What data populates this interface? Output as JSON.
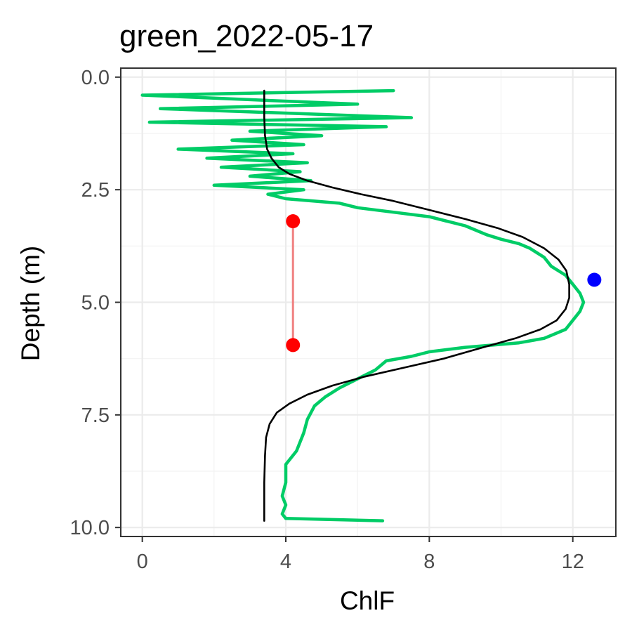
{
  "chart_data": {
    "type": "line",
    "title": "green_2022-05-17",
    "xlabel": "ChlF",
    "ylabel": "Depth (m)",
    "xlim": [
      -0.6,
      13.2
    ],
    "ylim": [
      10.2,
      -0.2
    ],
    "y_reversed": true,
    "x_ticks": [
      0,
      4,
      8,
      12
    ],
    "x_tick_labels": [
      "0",
      "4",
      "8",
      "12"
    ],
    "y_ticks": [
      0,
      2.5,
      5,
      7.5,
      10
    ],
    "y_tick_labels": [
      "0.0",
      "2.5",
      "5.0",
      "7.5",
      "10.0"
    ],
    "grid": true,
    "theme": "bw",
    "series": [
      {
        "kind": "observed",
        "color": "#00cc66",
        "x": [
          7.0,
          0.0,
          6.0,
          0.5,
          7.5,
          0.2,
          6.8,
          3.0,
          5.0,
          2.5,
          4.5,
          1.0,
          4.2,
          1.8,
          4.6,
          2.2,
          4.4,
          3.0,
          4.7,
          2.0,
          4.5,
          3.5,
          4.0,
          5.5,
          6.0,
          7.0,
          8.0,
          8.5,
          9.0,
          9.6,
          10.0,
          10.5,
          10.8,
          11.2,
          11.4,
          11.8,
          12.0,
          12.2,
          12.3,
          12.2,
          12.0,
          11.8,
          11.5,
          11.2,
          10.5,
          9.0,
          8.0,
          7.5,
          6.8,
          6.5,
          6.0,
          5.5,
          5.1,
          4.8,
          4.6,
          4.5,
          4.3,
          4.0,
          4.0,
          3.9,
          4.0,
          3.9,
          4.0,
          6.7
        ],
        "y": [
          0.3,
          0.4,
          0.6,
          0.7,
          0.9,
          1.0,
          1.1,
          1.2,
          1.3,
          1.4,
          1.5,
          1.6,
          1.7,
          1.8,
          1.9,
          2.0,
          2.1,
          2.2,
          2.3,
          2.4,
          2.5,
          2.6,
          2.7,
          2.8,
          2.9,
          3.0,
          3.1,
          3.2,
          3.3,
          3.5,
          3.6,
          3.7,
          3.8,
          4.0,
          4.2,
          4.4,
          4.6,
          4.8,
          5.0,
          5.2,
          5.4,
          5.6,
          5.7,
          5.8,
          5.9,
          6.0,
          6.1,
          6.2,
          6.3,
          6.5,
          6.7,
          6.9,
          7.1,
          7.3,
          7.6,
          7.9,
          8.3,
          8.6,
          9.0,
          9.3,
          9.5,
          9.7,
          9.8,
          9.85
        ]
      },
      {
        "kind": "fit",
        "color": "#000000",
        "x": [
          3.4,
          3.4,
          3.42,
          3.48,
          3.6,
          3.8,
          4.1,
          4.6,
          5.3,
          6.1,
          7.0,
          8.0,
          9.0,
          9.9,
          10.6,
          11.2,
          11.6,
          11.82,
          11.9,
          11.9,
          11.8,
          11.55,
          11.1,
          10.4,
          9.5,
          8.4,
          7.3,
          6.2,
          5.3,
          4.6,
          4.1,
          3.75,
          3.55,
          3.45,
          3.42,
          3.4,
          3.4
        ],
        "y": [
          0.3,
          0.9,
          1.3,
          1.6,
          1.8,
          2.0,
          2.15,
          2.3,
          2.45,
          2.6,
          2.75,
          2.95,
          3.15,
          3.35,
          3.55,
          3.8,
          4.05,
          4.3,
          4.6,
          4.9,
          5.15,
          5.4,
          5.6,
          5.8,
          6.0,
          6.25,
          6.45,
          6.65,
          6.85,
          7.05,
          7.25,
          7.45,
          7.7,
          8.0,
          8.4,
          9.0,
          9.85
        ]
      }
    ],
    "points": [
      {
        "x": 4.2,
        "y": 3.2,
        "color": "#ff0000"
      },
      {
        "x": 4.2,
        "y": 5.95,
        "color": "#ff0000"
      },
      {
        "x": 12.6,
        "y": 4.5,
        "color": "#0000ff"
      }
    ],
    "segments": [
      {
        "x1": 4.2,
        "y1": 3.2,
        "x2": 4.2,
        "y2": 5.95,
        "color": "#f08080"
      }
    ]
  }
}
